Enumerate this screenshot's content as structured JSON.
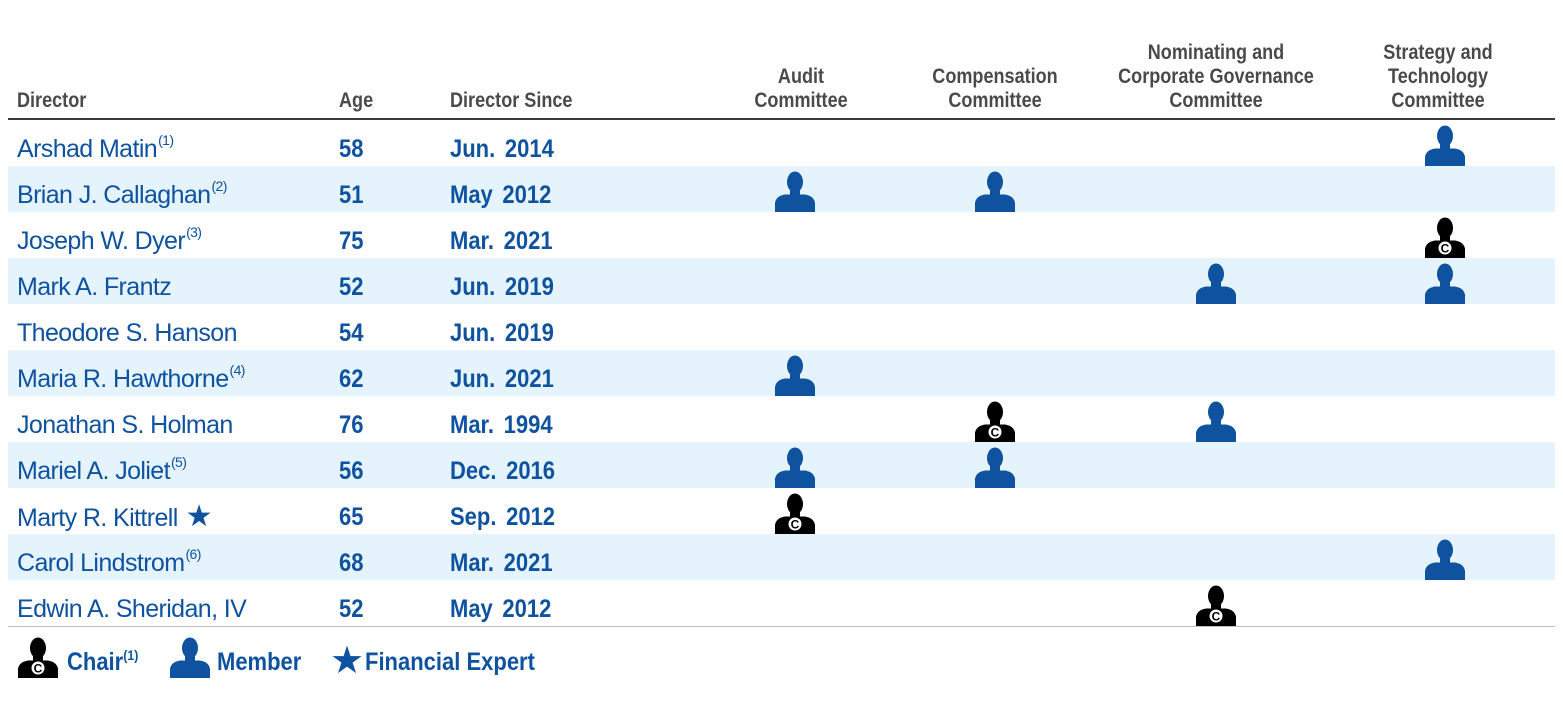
{
  "columns": {
    "director": "Director",
    "age": "Age",
    "director_since": "Director Since",
    "audit": [
      "Audit",
      "Committee"
    ],
    "compensation": [
      "Compensation",
      "Committee"
    ],
    "nominating": [
      "Nominating and",
      "Corporate  Governance",
      "Committee"
    ],
    "strategy": [
      "Strategy and",
      "Technology",
      "Committee"
    ]
  },
  "colors": {
    "member": "#0e52a0",
    "chair": "#000000",
    "row_shade": "#e5f4fc"
  },
  "directors": [
    {
      "name": "Arshad Matin",
      "note": "(1)",
      "age": "58",
      "since": "Jun.  2014",
      "financial_expert": false,
      "audit": "",
      "compensation": "",
      "nominating": "",
      "strategy": "member"
    },
    {
      "name": "Brian J. Callaghan",
      "note": "(2)",
      "age": "51",
      "since": "May  2012",
      "financial_expert": false,
      "audit": "member",
      "compensation": "member",
      "nominating": "",
      "strategy": ""
    },
    {
      "name": "Joseph W. Dyer",
      "note": "(3)",
      "age": "75",
      "since": "Mar.  2021",
      "financial_expert": false,
      "audit": "",
      "compensation": "",
      "nominating": "",
      "strategy": "chair"
    },
    {
      "name": "Mark A. Frantz",
      "note": "",
      "age": "52",
      "since": "Jun.  2019",
      "financial_expert": false,
      "audit": "",
      "compensation": "",
      "nominating": "member",
      "strategy": "member"
    },
    {
      "name": "Theodore S. Hanson",
      "note": "",
      "age": "54",
      "since": "Jun.  2019",
      "financial_expert": false,
      "audit": "",
      "compensation": "",
      "nominating": "",
      "strategy": ""
    },
    {
      "name": "Maria R. Hawthorne",
      "note": "(4)",
      "age": "62",
      "since": "Jun.  2021",
      "financial_expert": false,
      "audit": "member",
      "compensation": "",
      "nominating": "",
      "strategy": ""
    },
    {
      "name": "Jonathan S. Holman",
      "note": "",
      "age": "76",
      "since": "Mar.  1994",
      "financial_expert": false,
      "audit": "",
      "compensation": "chair",
      "nominating": "member",
      "strategy": ""
    },
    {
      "name": "Mariel A. Joliet",
      "note": "(5)",
      "age": "56",
      "since": "Dec.  2016",
      "financial_expert": false,
      "audit": "member",
      "compensation": "member",
      "nominating": "",
      "strategy": ""
    },
    {
      "name": "Marty R. Kittrell",
      "note": "",
      "age": "65",
      "since": "Sep.  2012",
      "financial_expert": true,
      "audit": "chair",
      "compensation": "",
      "nominating": "",
      "strategy": ""
    },
    {
      "name": "Carol Lindstrom",
      "note": "(6)",
      "age": "68",
      "since": "Mar.  2021",
      "financial_expert": false,
      "audit": "",
      "compensation": "",
      "nominating": "",
      "strategy": "member"
    },
    {
      "name": "Edwin A. Sheridan, IV",
      "note": "",
      "age": "52",
      "since": "May  2012",
      "financial_expert": false,
      "audit": "",
      "compensation": "",
      "nominating": "chair",
      "strategy": ""
    }
  ],
  "legend": {
    "chair_label": "Chair",
    "chair_note": "(1)",
    "member_label": "Member",
    "expert_label": "Financial Expert",
    "chair_icon": "person-chair-icon",
    "member_icon": "person-member-icon",
    "expert_icon": "star-icon"
  }
}
